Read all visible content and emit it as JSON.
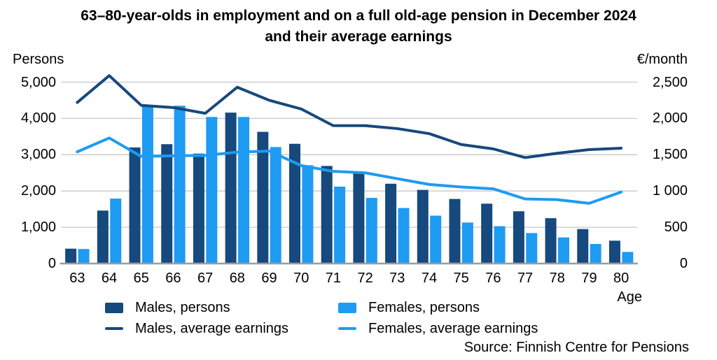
{
  "title": {
    "line1": "63–80-year-olds in employment and on a full old-age pension in December 2024",
    "line2": "and their average earnings"
  },
  "axes": {
    "left_label": "Persons",
    "right_label": "€/month",
    "x_label": "Age",
    "left_ticks": [
      "5,000",
      "4,000",
      "3,000",
      "2,000",
      "1,000",
      "0"
    ],
    "right_ticks": [
      "2,500",
      "2,000",
      "1,500",
      "1 000",
      "500",
      "0"
    ]
  },
  "legend": [
    {
      "label": "Males, persons",
      "marker": "square",
      "color": "#16497D"
    },
    {
      "label": "Females, persons",
      "marker": "square",
      "color": "#1E9BF2"
    },
    {
      "label": "Males, average earnings",
      "marker": "line",
      "color": "#16497D"
    },
    {
      "label": "Females, average earnings",
      "marker": "line",
      "color": "#1E9BF2"
    }
  ],
  "source": "Source: Finnish Centre for Pensions",
  "colors": {
    "males": "#16497D",
    "females": "#1E9BF2",
    "gridline": "#C8C8C8",
    "axis_line": "#9C9C9C"
  },
  "chart_data": {
    "type": "bar+line",
    "title": "63–80-year-olds in employment and on a full old-age pension in December 2024 and their average earnings",
    "categories": [
      63,
      64,
      65,
      66,
      67,
      68,
      69,
      70,
      71,
      72,
      73,
      74,
      75,
      76,
      77,
      78,
      79,
      80
    ],
    "xlabel": "Age",
    "left_axis": {
      "label": "Persons",
      "min": 0,
      "max": 5000,
      "step": 1000
    },
    "right_axis": {
      "label": "€/month",
      "min": 0,
      "max": 2500,
      "step": 500
    },
    "grid": "horizontal-only",
    "legend_position": "bottom",
    "bar_series": [
      {
        "name": "Males, persons",
        "axis": "left",
        "color": "#16497D",
        "values": [
          410,
          1460,
          3200,
          3290,
          3030,
          4160,
          3630,
          3300,
          2690,
          2480,
          2200,
          2030,
          1780,
          1650,
          1440,
          1250,
          950,
          630
        ]
      },
      {
        "name": "Females, persons",
        "axis": "left",
        "color": "#1E9BF2",
        "values": [
          400,
          1790,
          4350,
          4350,
          4040,
          4040,
          3210,
          2710,
          2120,
          1810,
          1530,
          1320,
          1130,
          1030,
          840,
          720,
          540,
          320
        ]
      }
    ],
    "line_series": [
      {
        "name": "Males, average earnings",
        "axis": "right",
        "color": "#16497D",
        "values": [
          2220,
          2590,
          2180,
          2150,
          2070,
          2430,
          2250,
          2130,
          1900,
          1900,
          1860,
          1790,
          1640,
          1580,
          1460,
          1520,
          1570,
          1590
        ]
      },
      {
        "name": "Females, average earnings",
        "axis": "right",
        "color": "#1E9BF2",
        "values": [
          1540,
          1730,
          1475,
          1485,
          1490,
          1535,
          1550,
          1350,
          1270,
          1250,
          1170,
          1090,
          1055,
          1030,
          890,
          880,
          830,
          985
        ]
      }
    ]
  }
}
